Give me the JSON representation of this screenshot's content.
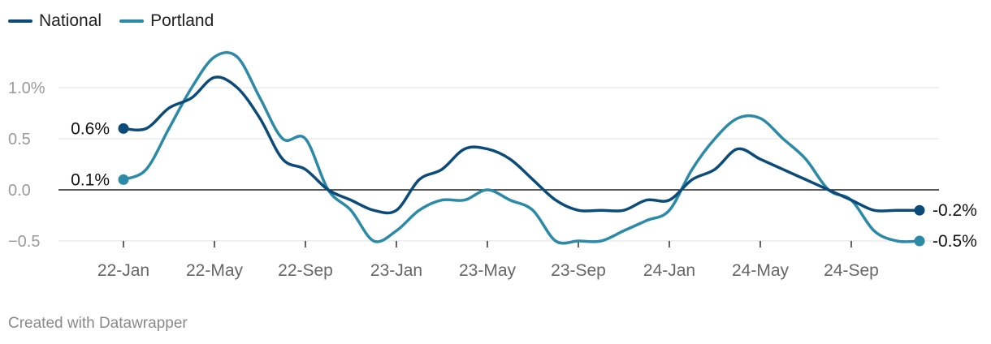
{
  "chart_data": {
    "type": "line",
    "x": [
      "22-Jan",
      "22-Feb",
      "22-Mar",
      "22-Apr",
      "22-May",
      "22-Jun",
      "22-Jul",
      "22-Aug",
      "22-Sep",
      "22-Oct",
      "22-Nov",
      "22-Dec",
      "23-Jan",
      "23-Feb",
      "23-Mar",
      "23-Apr",
      "23-May",
      "23-Jun",
      "23-Jul",
      "23-Aug",
      "23-Sep",
      "23-Oct",
      "23-Nov",
      "23-Dec",
      "24-Jan",
      "24-Feb",
      "24-Mar",
      "24-Apr",
      "24-May",
      "24-Jun",
      "24-Jul",
      "24-Aug",
      "24-Sep",
      "24-Oct",
      "24-Nov",
      "24-Dec"
    ],
    "xticks": [
      "22-Jan",
      "22-May",
      "22-Sep",
      "23-Jan",
      "23-May",
      "23-Sep",
      "24-Jan",
      "24-May",
      "24-Sep"
    ],
    "series": [
      {
        "name": "National",
        "color": "#0b4b7a",
        "values": [
          0.6,
          0.6,
          0.8,
          0.9,
          1.1,
          1.0,
          0.7,
          0.3,
          0.2,
          0.0,
          -0.1,
          -0.2,
          -0.2,
          0.1,
          0.2,
          0.4,
          0.4,
          0.3,
          0.1,
          -0.1,
          -0.2,
          -0.2,
          -0.2,
          -0.1,
          -0.1,
          0.1,
          0.2,
          0.4,
          0.3,
          0.2,
          0.1,
          0.0,
          -0.1,
          -0.2,
          -0.2,
          -0.2
        ]
      },
      {
        "name": "Portland",
        "color": "#2a8aa8",
        "values": [
          0.1,
          0.2,
          0.6,
          1.0,
          1.3,
          1.3,
          0.9,
          0.5,
          0.5,
          0.0,
          -0.2,
          -0.5,
          -0.4,
          -0.2,
          -0.1,
          -0.1,
          0.0,
          -0.1,
          -0.2,
          -0.5,
          -0.5,
          -0.5,
          -0.4,
          -0.3,
          -0.2,
          0.2,
          0.5,
          0.7,
          0.7,
          0.5,
          0.3,
          0.0,
          -0.1,
          -0.4,
          -0.5,
          -0.5
        ]
      }
    ],
    "start_labels": [
      "0.6%",
      "0.1%"
    ],
    "end_labels": [
      "-0.2%",
      "-0.5%"
    ],
    "yticks": [
      1.0,
      0.5,
      0.0,
      -0.5
    ],
    "ytick_labels": [
      "1.0%",
      "0.5",
      "0.0",
      "−0.5"
    ],
    "ylim": [
      -0.5,
      1.0
    ],
    "grid": true,
    "legend": "top-left",
    "title": "",
    "xlabel": "",
    "ylabel": ""
  },
  "legend": {
    "national": "National",
    "portland": "Portland"
  },
  "footer": {
    "credit": "Created with Datawrapper"
  }
}
